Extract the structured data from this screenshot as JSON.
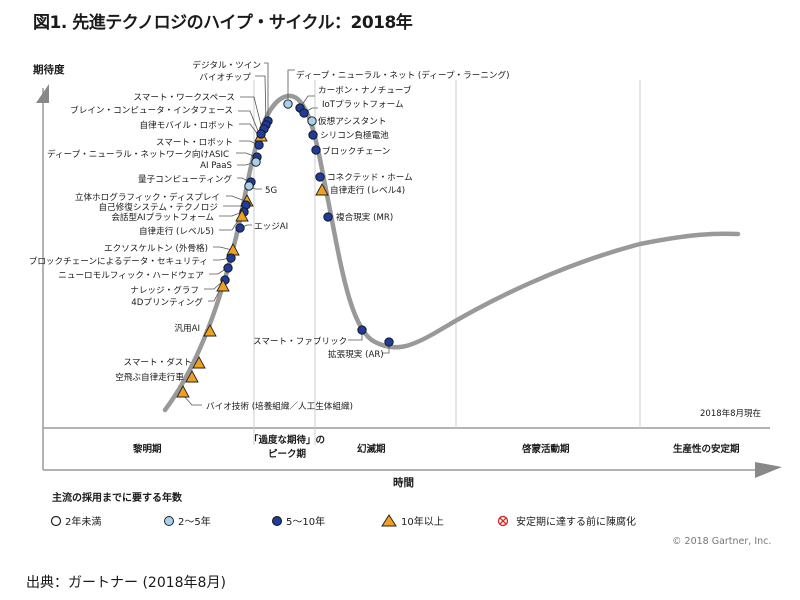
{
  "title": "図1. 先進テクノロジのハイプ・サイクル：2018年",
  "source": "出典：ガートナー (2018年8月)",
  "colors": {
    "curve": "#999999",
    "lt2": "#ffffff",
    "y2to5": "#a8d0ee",
    "y5to10": "#1f3c99",
    "gt10": "#f0a020",
    "obsolete": "#d03030",
    "grid": "#cccccc",
    "axis": "#888888"
  },
  "chart_data": {
    "type": "scatter",
    "title": "先進テクノロジのハイプ・サイクル：2018年",
    "ylabel": "期待度",
    "xlabel": "時間",
    "as_of": "2018年8月現在",
    "copyright": "© 2018 Gartner, Inc.",
    "phases": [
      {
        "name": "黎明期"
      },
      {
        "name": "「過度な期待」の\nピーク期",
        "line1": "「過度な期待」の",
        "line2": "ピーク期"
      },
      {
        "name": "幻滅期"
      },
      {
        "name": "啓蒙活動期"
      },
      {
        "name": "生産性の安定期"
      }
    ],
    "legend": {
      "title": "主流の採用までに要する年数",
      "items": [
        {
          "key": "lt2",
          "label": "2年未満",
          "shape": "circle-open"
        },
        {
          "key": "y2to5",
          "label": "2〜5年",
          "shape": "circle-light"
        },
        {
          "key": "y5to10",
          "label": "5〜10年",
          "shape": "circle-dark"
        },
        {
          "key": "gt10",
          "label": "10年以上",
          "shape": "triangle"
        },
        {
          "key": "obsolete",
          "label": "安定期に達する前に陳腐化",
          "shape": "x-circle"
        }
      ]
    },
    "technologies": [
      {
        "name": "ディープ・ニューラル・ネット (ディープ・ラーニング)",
        "phase": "peak",
        "years": "y2to5",
        "pos": 0.29
      },
      {
        "name": "カーボン・ナノチューブ",
        "phase": "disillusionment",
        "years": "y5to10",
        "pos": 0.3
      },
      {
        "name": "IoTプラットフォーム",
        "phase": "disillusionment",
        "years": "y5to10",
        "pos": 0.304
      },
      {
        "name": "仮想アシスタント",
        "phase": "disillusionment",
        "years": "y2to5",
        "pos": 0.312
      },
      {
        "name": "シリコン負極電池",
        "phase": "disillusionment",
        "years": "y5to10",
        "pos": 0.318
      },
      {
        "name": "ブロックチェーン",
        "phase": "disillusionment",
        "years": "y5to10",
        "pos": 0.322
      },
      {
        "name": "コネクテッド・ホーム",
        "phase": "disillusionment",
        "years": "y5to10",
        "pos": 0.33
      },
      {
        "name": "自律走行 (レベル4)",
        "phase": "disillusionment",
        "years": "gt10",
        "pos": 0.332
      },
      {
        "name": "複合現実 (MR)",
        "phase": "disillusionment",
        "years": "y5to10",
        "pos": 0.34
      },
      {
        "name": "スマート・ファブリック",
        "phase": "disillusionment",
        "years": "y5to10",
        "pos": 0.372
      },
      {
        "name": "拡張現実 (AR)",
        "phase": "disillusionment",
        "years": "y5to10",
        "pos": 0.395
      },
      {
        "name": "デジタル・ツイン",
        "phase": "peak",
        "years": "y5to10",
        "pos": 0.267
      },
      {
        "name": "バイオチップ",
        "phase": "peak",
        "years": "y5to10",
        "pos": 0.265
      },
      {
        "name": "スマート・ワークスペース",
        "phase": "peak",
        "years": "y5to10",
        "pos": 0.262
      },
      {
        "name": "ブレイン・コンピュータ・インタフェース",
        "phase": "peak",
        "years": "gt10",
        "pos": 0.26
      },
      {
        "name": "自律モバイル・ロボット",
        "phase": "peak",
        "years": "y5to10",
        "pos": 0.259
      },
      {
        "name": "スマート・ロボット",
        "phase": "peak",
        "years": "y5to10",
        "pos": 0.258
      },
      {
        "name": "ディープ・ニューラル・ネットワーク向けASIC",
        "phase": "peak",
        "years": "y5to10",
        "pos": 0.256
      },
      {
        "name": "AI PaaS",
        "phase": "peak",
        "years": "y2to5",
        "pos": 0.255
      },
      {
        "name": "量子コンピューティング",
        "phase": "trigger",
        "years": "y5to10",
        "pos": 0.25
      },
      {
        "name": "5G",
        "phase": "trigger",
        "years": "y2to5",
        "pos": 0.249
      },
      {
        "name": "立体ホログラフィック・ディスプレイ",
        "phase": "trigger",
        "years": "gt10",
        "pos": 0.246
      },
      {
        "name": "自己修復システム・テクノロジ",
        "phase": "trigger",
        "years": "y5to10",
        "pos": 0.244
      },
      {
        "name": "会話型AIプラットフォーム",
        "phase": "trigger",
        "years": "y5to10",
        "pos": 0.243
      },
      {
        "name": "自律走行 (レベル5)",
        "phase": "trigger",
        "years": "gt10",
        "pos": 0.242
      },
      {
        "name": "エッジAI",
        "phase": "trigger",
        "years": "y5to10",
        "pos": 0.241
      },
      {
        "name": "エクソスケルトン (外骨格)",
        "phase": "trigger",
        "years": "gt10",
        "pos": 0.233
      },
      {
        "name": "ブロックチェーンによるデータ・セキュリティ",
        "phase": "trigger",
        "years": "y5to10",
        "pos": 0.231
      },
      {
        "name": "ニューロモルフィック・ハードウェア",
        "phase": "trigger",
        "years": "y5to10",
        "pos": 0.228
      },
      {
        "name": "ナレッジ・グラフ",
        "phase": "trigger",
        "years": "y5to10",
        "pos": 0.225
      },
      {
        "name": "4Dプリンティング",
        "phase": "trigger",
        "years": "gt10",
        "pos": 0.223
      },
      {
        "name": "汎用AI",
        "phase": "trigger",
        "years": "gt10",
        "pos": 0.21
      },
      {
        "name": "スマート・ダスト",
        "phase": "trigger",
        "years": "gt10",
        "pos": 0.199
      },
      {
        "name": "空飛ぶ自律走行車",
        "phase": "trigger",
        "years": "gt10",
        "pos": 0.192
      },
      {
        "name": "バイオ技術 (培養組織／人工生体組織)",
        "phase": "trigger",
        "years": "gt10",
        "pos": 0.183
      }
    ]
  }
}
